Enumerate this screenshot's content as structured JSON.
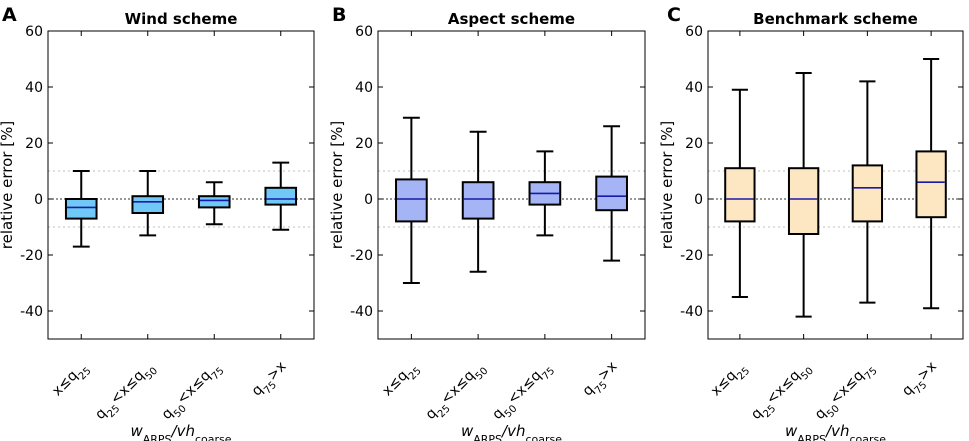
{
  "chart_data": [
    {
      "type": "box",
      "panel": "A",
      "title": "Wind scheme",
      "ylabel": "relative error [%]",
      "xlabel": "w_ARPS/vh_coarse",
      "ylim": [
        -50,
        60
      ],
      "yticks": [
        -40,
        -20,
        0,
        20,
        40,
        60
      ],
      "reference_lines": [
        10,
        0,
        -10
      ],
      "box_color": "#6fc8f5",
      "median_color": "#1a1aa8",
      "categories": [
        "x≤q25",
        "q25<x≤q50",
        "q50<x≤q75",
        "q75>x"
      ],
      "boxes": [
        {
          "min": -17,
          "q1": -7,
          "median": -3,
          "q3": 0,
          "max": 10
        },
        {
          "min": -13,
          "q1": -5,
          "median": -1,
          "q3": 1,
          "max": 10
        },
        {
          "min": -9,
          "q1": -3,
          "median": -0.5,
          "q3": 1,
          "max": 6
        },
        {
          "min": -11,
          "q1": -2,
          "median": 0,
          "q3": 4,
          "max": 13
        }
      ]
    },
    {
      "type": "box",
      "panel": "B",
      "title": "Aspect scheme",
      "ylabel": "relative error [%]",
      "xlabel": "w_ARPS/vh_coarse",
      "ylim": [
        -50,
        60
      ],
      "yticks": [
        -40,
        -20,
        0,
        20,
        40,
        60
      ],
      "reference_lines": [
        10,
        0,
        -10
      ],
      "box_color": "#a5b4f5",
      "median_color": "#1a1aa8",
      "categories": [
        "x≤q25",
        "q25<x≤q50",
        "q50<x≤q75",
        "q75>x"
      ],
      "boxes": [
        {
          "min": -30,
          "q1": -8,
          "median": 0,
          "q3": 7,
          "max": 29
        },
        {
          "min": -26,
          "q1": -7,
          "median": 0,
          "q3": 6,
          "max": 24
        },
        {
          "min": -13,
          "q1": -2,
          "median": 2,
          "q3": 6,
          "max": 17
        },
        {
          "min": -22,
          "q1": -4,
          "median": 1,
          "q3": 8,
          "max": 26
        }
      ]
    },
    {
      "type": "box",
      "panel": "C",
      "title": "Benchmark scheme",
      "ylabel": "relative error [%]",
      "xlabel": "w_ARPS/vh_coarse",
      "ylim": [
        -50,
        60
      ],
      "yticks": [
        -40,
        -20,
        0,
        20,
        40,
        60
      ],
      "reference_lines": [
        10,
        0,
        -10
      ],
      "box_color": "#fde7c2",
      "median_color": "#1a1aa8",
      "categories": [
        "x≤q25",
        "q25<x≤q50",
        "q50<x≤q75",
        "q75>x"
      ],
      "boxes": [
        {
          "min": -35,
          "q1": -8,
          "median": 0,
          "q3": 11,
          "max": 39
        },
        {
          "min": -42,
          "q1": -12.5,
          "median": 0,
          "q3": 11,
          "max": 45
        },
        {
          "min": -37,
          "q1": -8,
          "median": 4,
          "q3": 12,
          "max": 42
        },
        {
          "min": -39,
          "q1": -6.5,
          "median": 6,
          "q3": 17,
          "max": 50
        }
      ]
    }
  ]
}
